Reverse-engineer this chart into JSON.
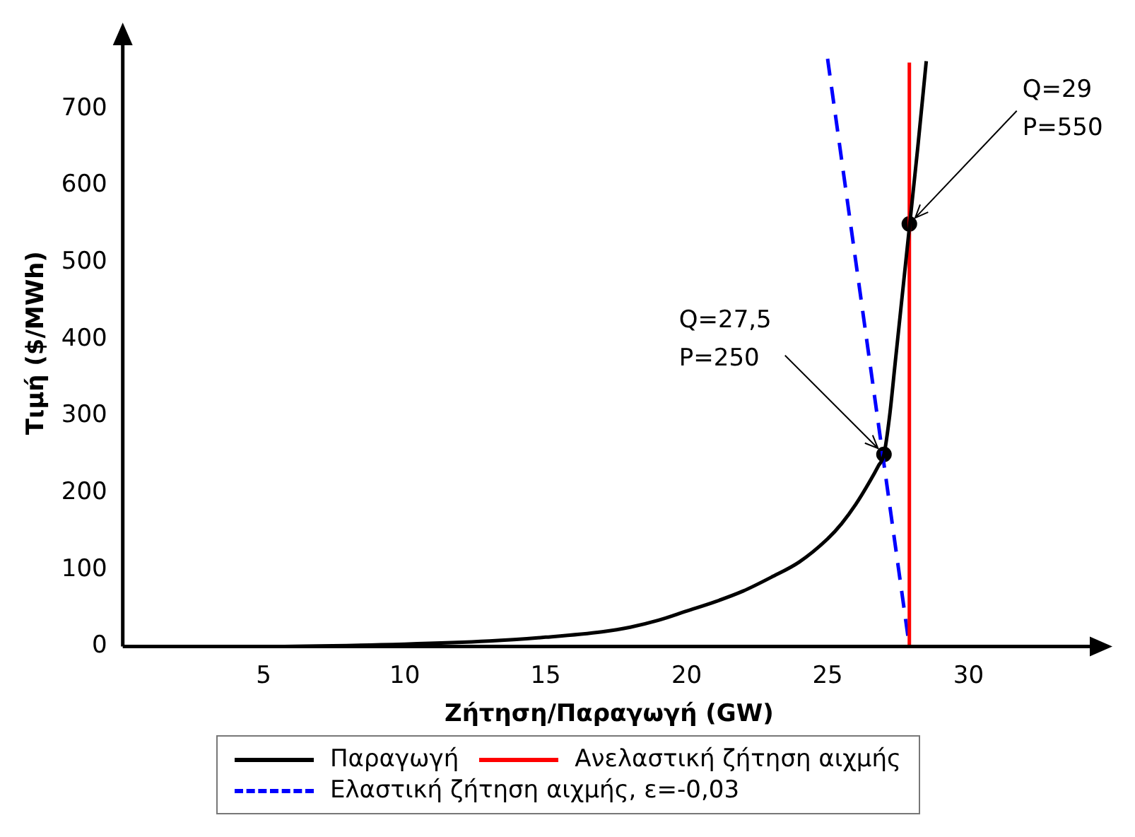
{
  "chart_data": {
    "type": "line",
    "xlabel": "Ζήτηση/Παραγωγή (GW)",
    "ylabel": "Τιμή ($/MWh)",
    "xlim": [
      0,
      34.5
    ],
    "xticks": [
      5,
      10,
      15,
      20,
      25,
      30
    ],
    "ylim": [
      0,
      790
    ],
    "yticks": [
      0,
      100,
      200,
      300,
      400,
      500,
      600,
      700
    ],
    "grid": false,
    "legend": "bottom",
    "marker": "none",
    "series": [
      {
        "name": "Παραγωγή",
        "color": "#000000",
        "x": [
          0.3,
          5,
          10,
          13,
          15,
          17,
          18,
          19,
          20,
          21,
          22,
          23,
          24,
          25,
          25.5,
          26,
          26.5,
          26.8,
          27,
          27.2,
          27.4,
          27.6,
          27.8,
          28,
          28.2,
          28.5
        ],
        "values": [
          0,
          0,
          3,
          7,
          12,
          19,
          25,
          34,
          46,
          58,
          72,
          90,
          110,
          140,
          160,
          185,
          215,
          235,
          250,
          300,
          370,
          440,
          510,
          580,
          650,
          762
        ]
      },
      {
        "name": "Ανελαστική ζήτηση αιχμής",
        "color": "#ff0000",
        "x": [
          27.9,
          27.9
        ],
        "values": [
          0,
          760
        ]
      },
      {
        "name": "Ελαστική ζήτηση αιχμής, ε=-0,03",
        "color": "#0000ff",
        "line_style": "dashed",
        "x": [
          25,
          27.9
        ],
        "values": [
          765,
          0
        ]
      },
      {
        "type": "scatter",
        "marker": "circle",
        "color": "#000000",
        "x": [
          27,
          27.9
        ],
        "values": [
          250,
          550
        ]
      }
    ],
    "annotations": [
      {
        "text": "Q=27,5\nP=250",
        "x": 27,
        "y": 250
      },
      {
        "text": "Q=29\nP=550",
        "x": 27.9,
        "y": 550
      }
    ]
  }
}
